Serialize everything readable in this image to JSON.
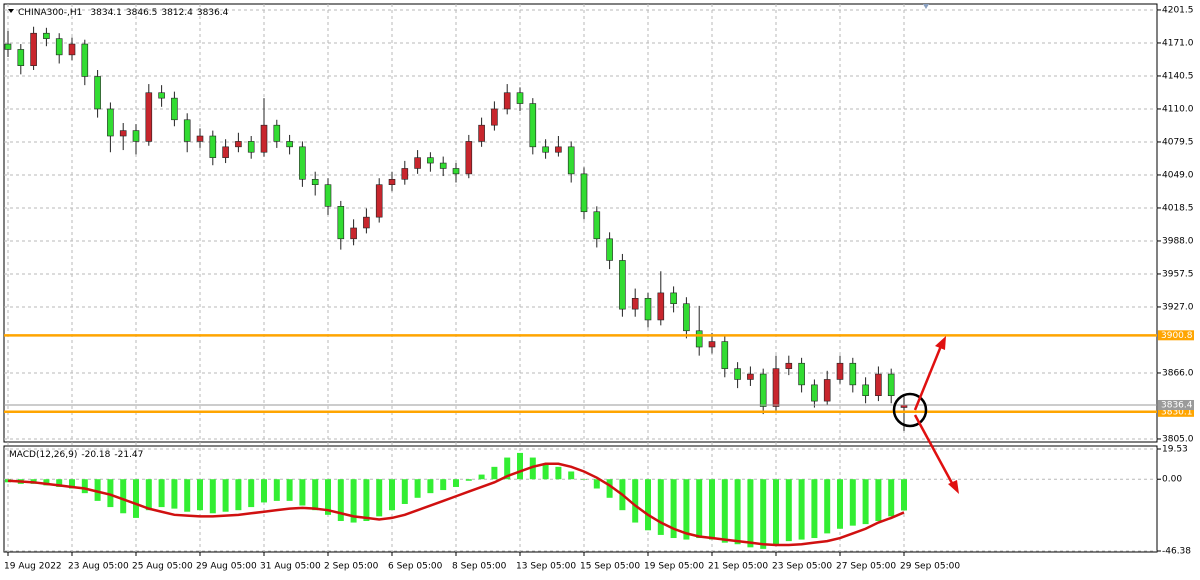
{
  "chart_data": [
    {
      "type": "candlestick",
      "symbol": "CHINA300-,H1",
      "categories": [
        "19 Aug 2022",
        null,
        null,
        null,
        null,
        "23 Aug 05:00",
        null,
        null,
        null,
        null,
        "25 Aug 05:00",
        null,
        null,
        null,
        null,
        "29 Aug 05:00",
        null,
        null,
        null,
        null,
        "31 Aug 05:00",
        null,
        null,
        null,
        null,
        "2 Sep 05:00",
        null,
        null,
        null,
        null,
        "6 Sep 05:00",
        null,
        null,
        null,
        null,
        "8 Sep 05:00",
        null,
        null,
        null,
        null,
        "13 Sep 05:00",
        null,
        null,
        null,
        null,
        "15 Sep 05:00",
        null,
        null,
        null,
        null,
        "19 Sep 05:00",
        null,
        null,
        null,
        null,
        "21 Sep 05:00",
        null,
        null,
        null,
        null,
        "23 Sep 05:00",
        null,
        null,
        null,
        null,
        "27 Sep 05:00",
        null,
        null,
        null,
        null,
        "29 Sep 05:00"
      ],
      "series": [
        {
          "up_color": "#c8262d",
          "down_color": "#32dc32",
          "ohlc": [
            [
              4170,
              4182,
              4158,
              4165
            ],
            [
              4165,
              4170,
              4142,
              4150
            ],
            [
              4150,
              4186,
              4146,
              4180
            ],
            [
              4180,
              4185,
              4168,
              4175
            ],
            [
              4175,
              4180,
              4152,
              4160
            ],
            [
              4160,
              4176,
              4155,
              4170
            ],
            [
              4170,
              4174,
              4132,
              4140
            ],
            [
              4140,
              4146,
              4102,
              4110
            ],
            [
              4110,
              4116,
              4070,
              4085
            ],
            [
              4085,
              4097,
              4072,
              4090
            ],
            [
              4090,
              4096,
              4068,
              4080
            ],
            [
              4080,
              4133,
              4076,
              4125
            ],
            [
              4125,
              4132,
              4112,
              4120
            ],
            [
              4120,
              4126,
              4094,
              4100
            ],
            [
              4100,
              4106,
              4070,
              4080
            ],
            [
              4080,
              4092,
              4074,
              4085
            ],
            [
              4085,
              4090,
              4058,
              4065
            ],
            [
              4065,
              4082,
              4060,
              4075
            ],
            [
              4075,
              4088,
              4070,
              4080
            ],
            [
              4080,
              4085,
              4064,
              4070
            ],
            [
              4070,
              4120,
              4066,
              4095
            ],
            [
              4095,
              4100,
              4074,
              4080
            ],
            [
              4080,
              4086,
              4068,
              4075
            ],
            [
              4075,
              4080,
              4038,
              4045
            ],
            [
              4045,
              4052,
              4030,
              4040
            ],
            [
              4040,
              4046,
              4012,
              4020
            ],
            [
              4020,
              4025,
              3980,
              3990
            ],
            [
              3990,
              4008,
              3984,
              4000
            ],
            [
              4000,
              4018,
              3995,
              4010
            ],
            [
              4010,
              4046,
              4005,
              4040
            ],
            [
              4040,
              4052,
              4034,
              4045
            ],
            [
              4045,
              4062,
              4040,
              4055
            ],
            [
              4055,
              4072,
              4050,
              4065
            ],
            [
              4065,
              4070,
              4052,
              4060
            ],
            [
              4060,
              4066,
              4048,
              4055
            ],
            [
              4055,
              4060,
              4042,
              4050
            ],
            [
              4050,
              4086,
              4046,
              4080
            ],
            [
              4080,
              4102,
              4075,
              4095
            ],
            [
              4095,
              4117,
              4090,
              4110
            ],
            [
              4110,
              4133,
              4105,
              4125
            ],
            [
              4125,
              4130,
              4108,
              4115
            ],
            [
              4115,
              4120,
              4068,
              4075
            ],
            [
              4075,
              4082,
              4064,
              4070
            ],
            [
              4070,
              4085,
              4066,
              4075
            ],
            [
              4075,
              4080,
              4042,
              4050
            ],
            [
              4050,
              4056,
              4008,
              4015
            ],
            [
              4015,
              4020,
              3982,
              3990
            ],
            [
              3990,
              3996,
              3962,
              3970
            ],
            [
              3970,
              3976,
              3918,
              3925
            ],
            [
              3925,
              3944,
              3918,
              3935
            ],
            [
              3935,
              3940,
              3908,
              3915
            ],
            [
              3915,
              3960,
              3910,
              3940
            ],
            [
              3940,
              3946,
              3922,
              3930
            ],
            [
              3930,
              3936,
              3898,
              3905
            ],
            [
              3905,
              3928,
              3882,
              3890
            ],
            [
              3890,
              3903,
              3884,
              3895
            ],
            [
              3895,
              3900,
              3862,
              3870
            ],
            [
              3870,
              3876,
              3852,
              3860
            ],
            [
              3860,
              3872,
              3854,
              3865
            ],
            [
              3865,
              3870,
              3828,
              3835
            ],
            [
              3835,
              3882,
              3830,
              3870
            ],
            [
              3870,
              3882,
              3864,
              3875
            ],
            [
              3875,
              3880,
              3848,
              3855
            ],
            [
              3855,
              3860,
              3834,
              3840
            ],
            [
              3840,
              3868,
              3836,
              3860
            ],
            [
              3860,
              3882,
              3856,
              3875
            ],
            [
              3875,
              3880,
              3848,
              3855
            ],
            [
              3855,
              3862,
              3838,
              3845
            ],
            [
              3845,
              3872,
              3840,
              3865
            ],
            [
              3865,
              3870,
              3838,
              3845
            ],
            [
              3834.1,
              3846.5,
              3812.4,
              3836.4
            ]
          ]
        }
      ],
      "ylim": [
        3802.2,
        4207.0
      ],
      "yticks": [
        4201.5,
        {
          "value": 4171.0,
          "label": "4171.0"
        },
        4140.5,
        {
          "value": 4110.0,
          "label": "4110.0"
        },
        4079.5,
        {
          "value": 4049.0,
          "label": "4049.0"
        },
        4018.5,
        {
          "value": 3988.0,
          "label": "3988.0"
        },
        3957.5,
        {
          "value": 3927.0,
          "label": "3927.0"
        },
        {
          "value": 3866.0,
          "label": "3866.0"
        },
        {
          "value": 3805.0,
          "label": "3805.0"
        }
      ],
      "hlines": [
        {
          "value": 3900.8,
          "color": "#ffa500"
        },
        {
          "value": 3830.1,
          "color": "#ffa500"
        },
        {
          "value": 3836.4,
          "color": "#9a9a9a"
        }
      ],
      "grid": true
    },
    {
      "type": "macd",
      "title": "MACD(12,26,9)",
      "last": [
        -20.18,
        -21.47
      ],
      "series": [
        {
          "kind": "histogram",
          "color": "#33ee33",
          "values": [
            -2,
            -3,
            -3,
            -4,
            -5,
            -6,
            -9,
            -14,
            -18,
            -22,
            -25,
            -20,
            -18,
            -19,
            -21,
            -20,
            -22,
            -21,
            -20,
            -18,
            -15,
            -14,
            -14,
            -17,
            -20,
            -23,
            -27,
            -28,
            -27,
            -24,
            -20,
            -16,
            -12,
            -9,
            -7,
            -5,
            -1,
            3,
            8,
            14,
            17,
            14,
            10,
            8,
            5,
            0,
            -6,
            -12,
            -20,
            -28,
            -33,
            -36,
            -38,
            -39,
            -38,
            -39,
            -41,
            -42,
            -44,
            -45,
            -42,
            -40,
            -39,
            -38,
            -35,
            -32,
            -30,
            -29,
            -27,
            -24,
            -20.18
          ]
        },
        {
          "kind": "line",
          "color": "#d01010",
          "values": [
            -1,
            -1.5,
            -2,
            -3,
            -4,
            -5,
            -6,
            -8,
            -10,
            -13,
            -16,
            -19,
            -21,
            -23,
            -23.5,
            -24,
            -24,
            -23.5,
            -23,
            -22,
            -21,
            -20,
            -19,
            -18.5,
            -19,
            -20,
            -22,
            -24,
            -25,
            -26,
            -25,
            -23,
            -20,
            -17,
            -14,
            -11,
            -8,
            -5,
            -2,
            2,
            5,
            8,
            10,
            10,
            8,
            5,
            1,
            -4,
            -10,
            -17,
            -23,
            -28,
            -32,
            -35,
            -37,
            -38,
            -39,
            -40,
            -41,
            -42,
            -42.5,
            -42.5,
            -42,
            -41,
            -40,
            -38,
            -35,
            -32,
            -28,
            -25,
            -21.47
          ]
        }
      ],
      "ylim": [
        -46.38,
        19.53
      ],
      "yticks": [
        19.53,
        {
          "value": 0,
          "label": "0.00"
        },
        -46.38
      ],
      "grid": true
    }
  ]
}
